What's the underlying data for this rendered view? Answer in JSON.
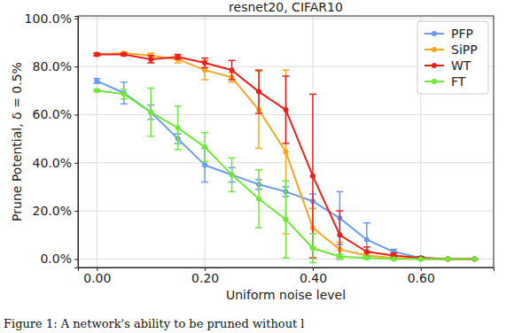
{
  "chart_data": {
    "type": "line",
    "title": "resnet20, CIFAR10",
    "x_label": "Uniform noise level",
    "y_label": "Prune Potential, δ = 0.5%",
    "annotations": [
      "Figure 1: A network's ability to be pruned without l"
    ],
    "x": [
      0,
      0.05,
      0.1,
      0.15,
      0.2,
      0.25,
      0.3,
      0.35,
      0.4,
      0.45,
      0.5,
      0.55,
      0.6,
      0.65,
      0.7
    ],
    "xlim": [
      -0.035,
      0.735
    ],
    "xticks": [
      {
        "value": 0,
        "label": "0.00"
      },
      {
        "value": 0.2,
        "label": "0.20"
      },
      {
        "value": 0.4,
        "label": "0.40"
      },
      {
        "value": 0.6,
        "label": "0.60"
      }
    ],
    "ylim": [
      -3.5,
      101
    ],
    "yticks": [
      {
        "value": 0,
        "label": "0.0%"
      },
      {
        "value": 20,
        "label": "20.0%"
      },
      {
        "value": 40,
        "label": "40.0%"
      },
      {
        "value": 60,
        "label": "60.0%"
      },
      {
        "value": 80,
        "label": "80.0%"
      },
      {
        "value": 100,
        "label": "100.0%"
      }
    ],
    "grid": true,
    "legend": "upper right",
    "series": [
      {
        "name": "PFP",
        "color": "#6a9bea",
        "marker": "circle",
        "values": [
          74,
          69,
          61,
          50,
          39,
          35,
          31,
          28,
          24,
          17,
          8,
          3,
          0.5,
          0,
          0
        ],
        "errors": [
          1,
          4.5,
          3,
          2,
          7,
          3,
          2,
          2,
          3,
          11,
          7,
          1,
          0.5,
          0,
          0
        ]
      },
      {
        "name": "SiPP",
        "color": "#f5a623",
        "marker": "circle",
        "values": [
          85,
          85.5,
          84.5,
          83,
          78.5,
          75.5,
          62,
          44.5,
          13,
          4,
          1.5,
          0.5,
          0,
          0,
          0
        ],
        "errors": [
          0.5,
          0.5,
          1,
          1.5,
          4,
          2,
          16,
          34,
          8,
          3,
          1,
          0.5,
          0,
          0,
          0
        ]
      },
      {
        "name": "WT",
        "color": "#e8211d",
        "marker": "circle",
        "values": [
          85,
          85,
          83,
          84,
          81.5,
          78.5,
          69.5,
          62,
          34.5,
          10,
          3,
          1.5,
          0.5,
          0,
          0
        ],
        "errors": [
          0.5,
          0.5,
          1.5,
          1,
          2,
          4,
          9,
          14,
          34,
          10,
          2,
          1,
          0.5,
          0,
          0
        ]
      },
      {
        "name": "FT",
        "color": "#6fe83a",
        "marker": "circle",
        "values": [
          70,
          68.5,
          61,
          54.5,
          46.5,
          35,
          25,
          16.5,
          4.5,
          1,
          0.5,
          0,
          0,
          0,
          0
        ],
        "errors": [
          0.5,
          2,
          10,
          9,
          6,
          7,
          12,
          16,
          6,
          1,
          0.5,
          0,
          0,
          0,
          0
        ]
      }
    ]
  }
}
